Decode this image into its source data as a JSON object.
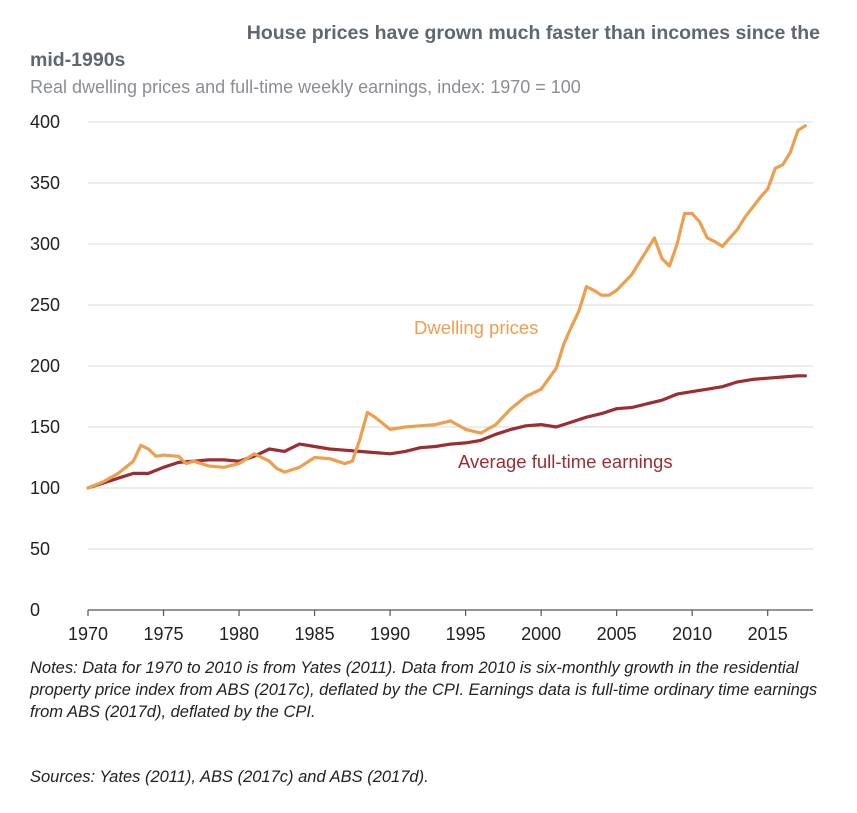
{
  "title_line1": "House prices have grown much faster than incomes since the",
  "title_line2": "mid-1990s",
  "subtitle": "Real dwelling prices and full-time weekly earnings, index: 1970 = 100",
  "notes": "Notes: Data for 1970 to 2010 is from Yates (2011). Data from 2010 is six-monthly growth in the residential property price index from ABS (2017c), deflated by the CPI. Earnings data is full-time ordinary time earnings from ABS (2017d), deflated by the CPI.",
  "sources": "Sources: Yates (2011), ABS (2017c) and ABS (2017d).",
  "colors": {
    "dwelling": "#ec9f4e",
    "earnings": "#9b2d33",
    "grid": "#d9d9d9",
    "axis": "#555555"
  },
  "chart_data": {
    "type": "line",
    "title": "House prices have grown much faster than incomes since the mid-1990s",
    "xlabel": "",
    "ylabel": "",
    "xlim": [
      1970,
      2018
    ],
    "ylim": [
      0,
      400
    ],
    "yticks": [
      0,
      50,
      100,
      150,
      200,
      250,
      300,
      350,
      400
    ],
    "xticks": [
      1970,
      1975,
      1980,
      1985,
      1990,
      1995,
      2000,
      2005,
      2010,
      2015
    ],
    "grid": true,
    "series": [
      {
        "name": "Dwelling prices",
        "label_position": "middle-right",
        "x": [
          1970,
          1971,
          1972,
          1973,
          1973.5,
          1974,
          1974.5,
          1975,
          1976,
          1976.5,
          1977,
          1978,
          1979,
          1980,
          1981,
          1982,
          1982.5,
          1983,
          1984,
          1985,
          1986,
          1987,
          1987.5,
          1988,
          1988.5,
          1989,
          1990,
          1991,
          1992,
          1993,
          1994,
          1995,
          1996,
          1997,
          1998,
          1999,
          2000,
          2001,
          2001.5,
          2002,
          2002.5,
          2003,
          2003.5,
          2004,
          2004.5,
          2005,
          2006,
          2007,
          2007.5,
          2008,
          2008.5,
          2009,
          2009.5,
          2010,
          2010.5,
          2011,
          2011.5,
          2012,
          2012.5,
          2013,
          2013.5,
          2014,
          2014.5,
          2015,
          2015.5,
          2016,
          2016.5,
          2017,
          2017.5
        ],
        "values": [
          100,
          105,
          112,
          122,
          135,
          132,
          126,
          127,
          126,
          120,
          122,
          118,
          117,
          120,
          128,
          122,
          116,
          113,
          117,
          125,
          124,
          120,
          122,
          140,
          162,
          158,
          148,
          150,
          151,
          152,
          155,
          148,
          145,
          152,
          165,
          175,
          181,
          198,
          218,
          232,
          245,
          265,
          262,
          258,
          258,
          262,
          275,
          295,
          305,
          288,
          282,
          300,
          325,
          325,
          318,
          305,
          302,
          298,
          305,
          312,
          322,
          330,
          338,
          345,
          362,
          365,
          375,
          393,
          397
        ]
      },
      {
        "name": "Average full-time earnings",
        "label_position": "lower-middle",
        "x": [
          1970,
          1971,
          1972,
          1973,
          1974,
          1975,
          1976,
          1977,
          1978,
          1979,
          1980,
          1981,
          1982,
          1983,
          1984,
          1985,
          1986,
          1987,
          1988,
          1989,
          1990,
          1991,
          1992,
          1993,
          1994,
          1995,
          1996,
          1997,
          1998,
          1999,
          2000,
          2001,
          2002,
          2003,
          2004,
          2005,
          2006,
          2007,
          2008,
          2009,
          2010,
          2011,
          2012,
          2013,
          2014,
          2015,
          2016,
          2017,
          2017.5
        ],
        "values": [
          100,
          104,
          108,
          112,
          112,
          117,
          121,
          122,
          123,
          123,
          122,
          126,
          132,
          130,
          136,
          134,
          132,
          131,
          130,
          129,
          128,
          130,
          133,
          134,
          136,
          137,
          139,
          144,
          148,
          151,
          152,
          150,
          154,
          158,
          161,
          165,
          166,
          169,
          172,
          177,
          179,
          181,
          183,
          187,
          189,
          190,
          191,
          192,
          192
        ]
      }
    ]
  }
}
